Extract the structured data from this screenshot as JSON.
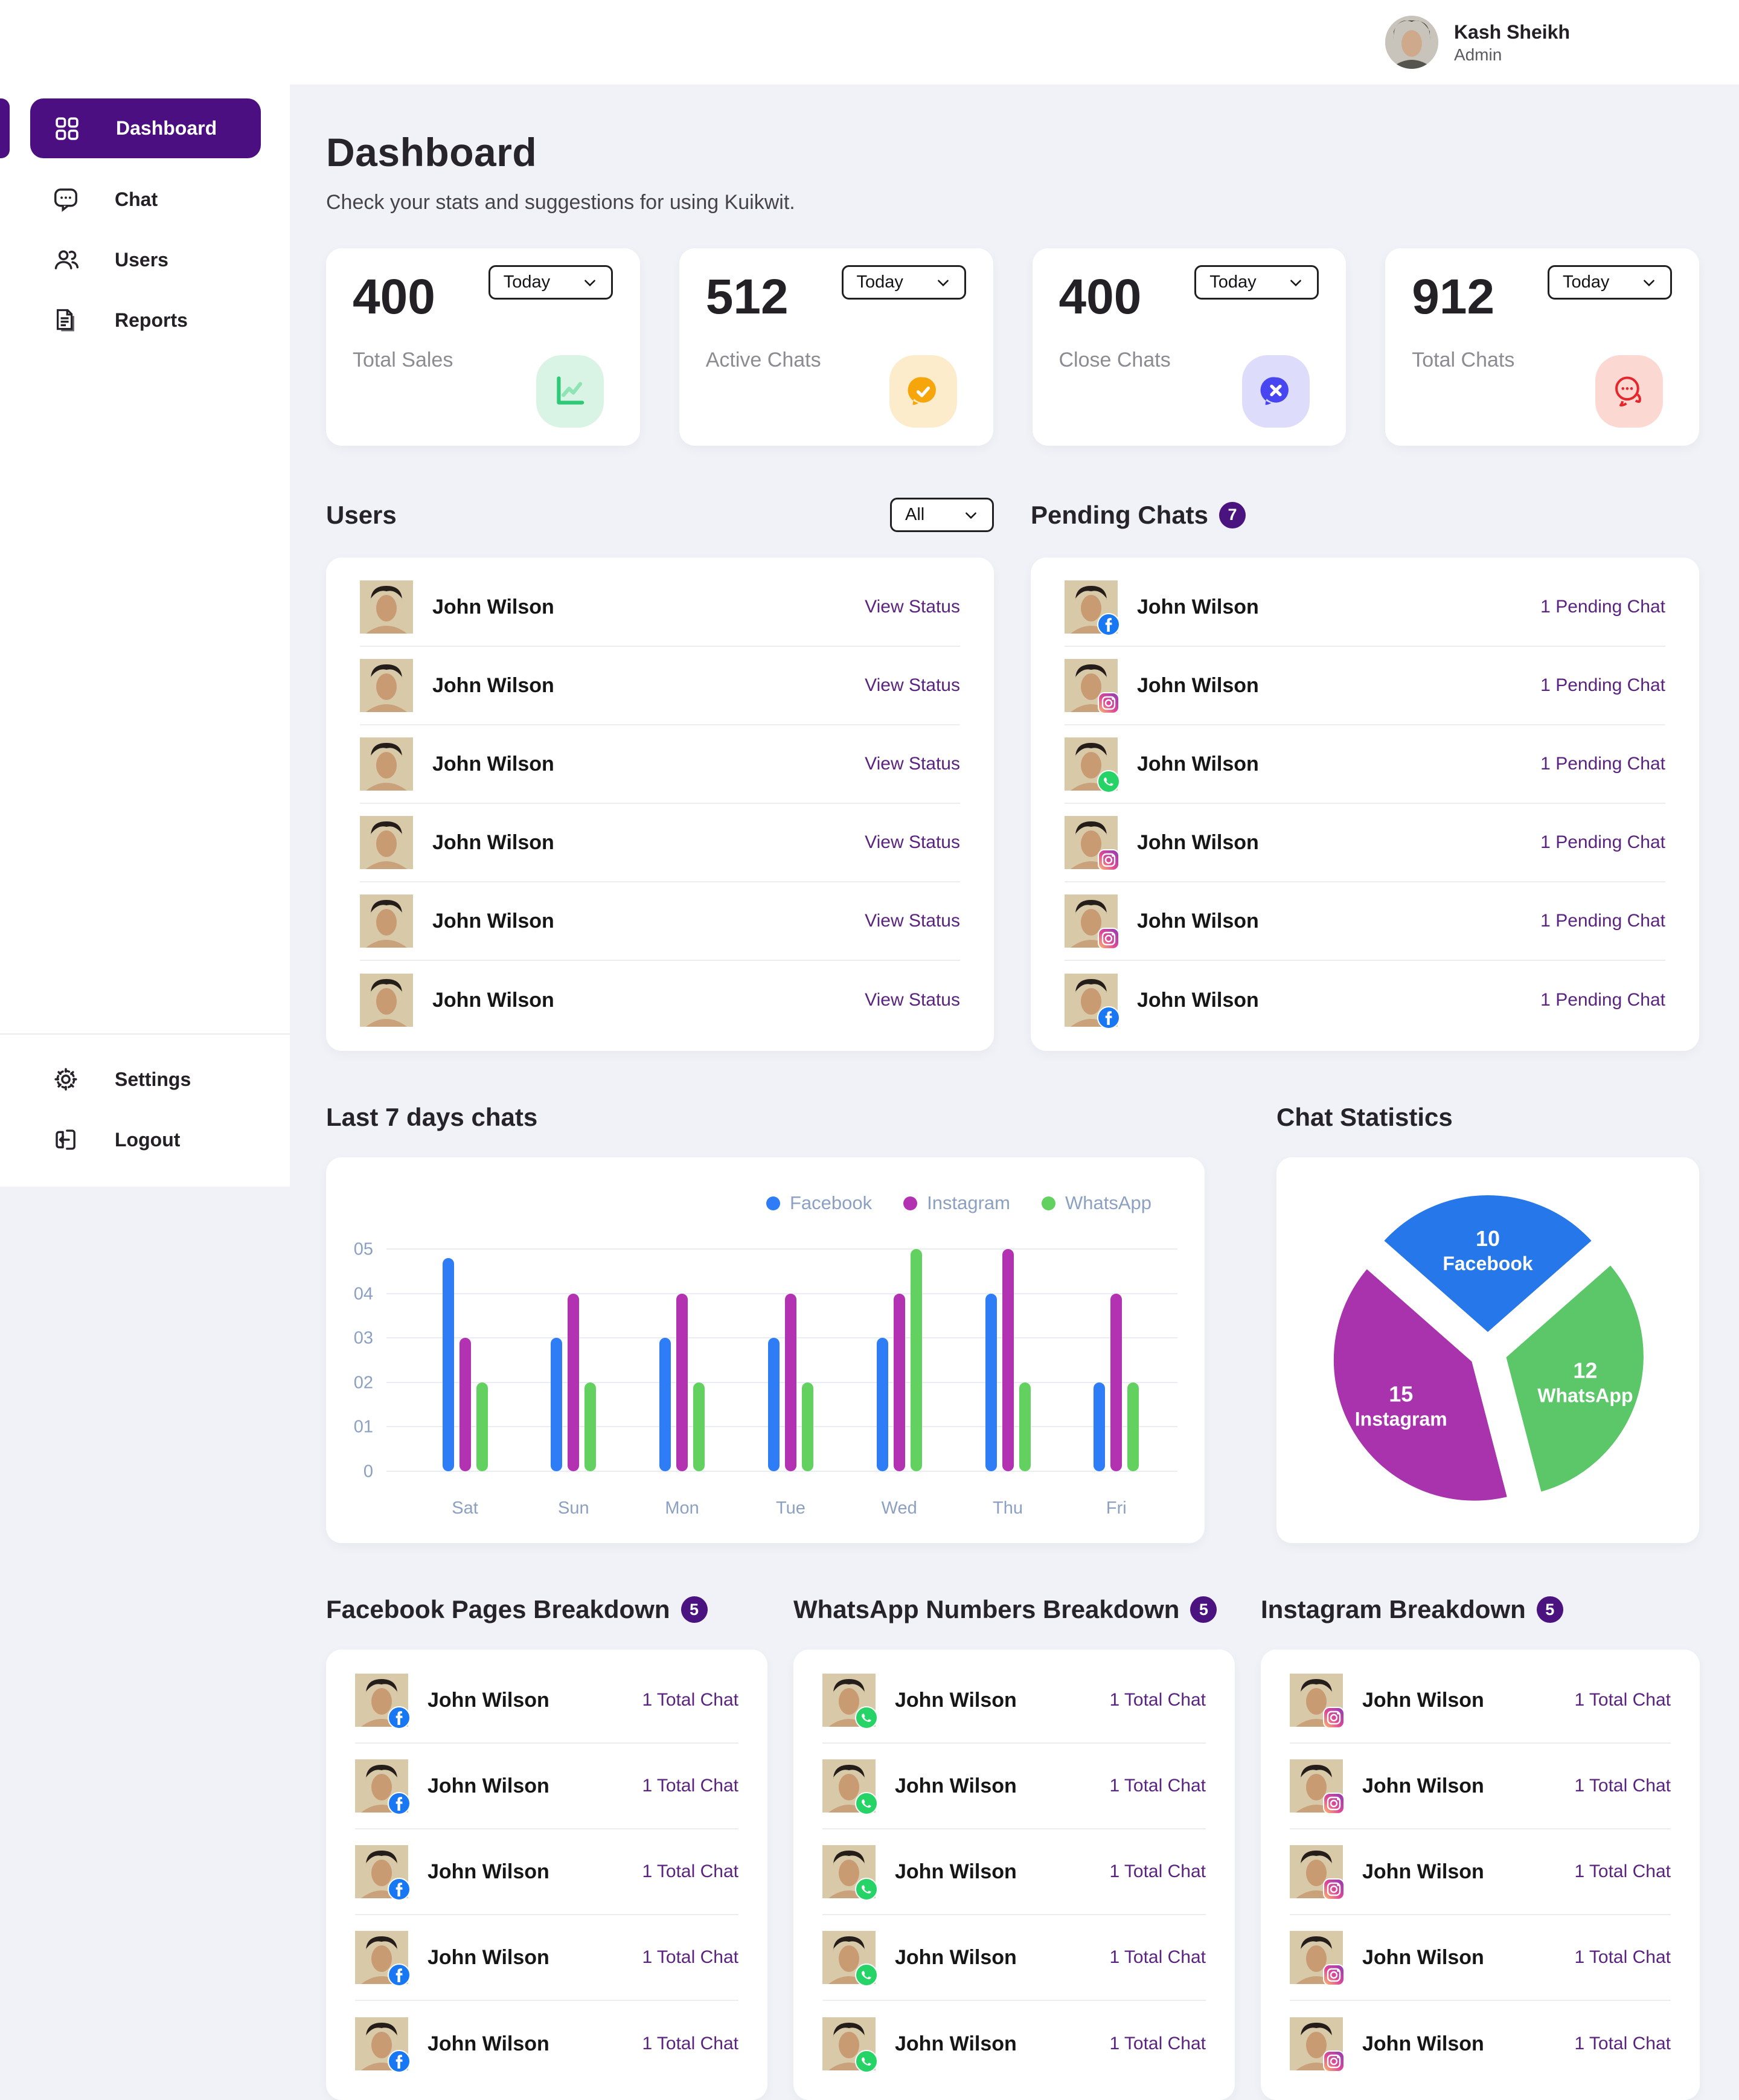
{
  "header": {
    "user_name": "Kash Sheikh",
    "user_role": "Admin"
  },
  "sidebar": {
    "items": [
      {
        "label": "Dashboard",
        "icon": "grid-icon",
        "active": true
      },
      {
        "label": "Chat",
        "icon": "chat-icon"
      },
      {
        "label": "Users",
        "icon": "users-icon"
      },
      {
        "label": "Reports",
        "icon": "reports-icon"
      }
    ],
    "footer_items": [
      {
        "label": "Settings",
        "icon": "gear-icon"
      },
      {
        "label": "Logout",
        "icon": "logout-icon"
      }
    ]
  },
  "page": {
    "title": "Dashboard",
    "subtitle": "Check your stats and suggestions for using Kuikwit."
  },
  "stats": [
    {
      "value": "400",
      "label": "Total Sales",
      "period": "Today",
      "icon": "chart-line-icon",
      "icon_bg": "#d9f4e5"
    },
    {
      "value": "512",
      "label": "Active Chats",
      "period": "Today",
      "icon": "chat-check-icon",
      "icon_bg": "#fceccb"
    },
    {
      "value": "400",
      "label": "Close Chats",
      "period": "Today",
      "icon": "chat-close-icon",
      "icon_bg": "#dedcfb"
    },
    {
      "value": "912",
      "label": "Total Chats",
      "period": "Today",
      "icon": "chat-multi-icon",
      "icon_bg": "#fbd9d2"
    }
  ],
  "users_section": {
    "title": "Users",
    "filter": "All",
    "rows": [
      {
        "name": "John Wilson",
        "action": "View Status"
      },
      {
        "name": "John Wilson",
        "action": "View Status"
      },
      {
        "name": "John Wilson",
        "action": "View Status"
      },
      {
        "name": "John Wilson",
        "action": "View Status"
      },
      {
        "name": "John Wilson",
        "action": "View Status"
      },
      {
        "name": "John Wilson",
        "action": "View Status"
      }
    ]
  },
  "pending_section": {
    "title": "Pending Chats",
    "badge": "7",
    "rows": [
      {
        "name": "John Wilson",
        "status": "1 Pending Chat",
        "platform": "facebook"
      },
      {
        "name": "John Wilson",
        "status": "1 Pending Chat",
        "platform": "instagram"
      },
      {
        "name": "John Wilson",
        "status": "1 Pending Chat",
        "platform": "whatsapp"
      },
      {
        "name": "John Wilson",
        "status": "1 Pending Chat",
        "platform": "instagram"
      },
      {
        "name": "John Wilson",
        "status": "1 Pending Chat",
        "platform": "instagram"
      },
      {
        "name": "John Wilson",
        "status": "1 Pending Chat",
        "platform": "facebook"
      }
    ]
  },
  "chart_data": [
    {
      "type": "bar",
      "title": "Last 7 days chats",
      "categories": [
        "Sat",
        "Sun",
        "Mon",
        "Tue",
        "Wed",
        "Thu",
        "Fri"
      ],
      "series": [
        {
          "name": "Facebook",
          "color": "#2e7cf6",
          "values": [
            4.8,
            3,
            3,
            3,
            3,
            4,
            2
          ]
        },
        {
          "name": "Instagram",
          "color": "#b232b2",
          "values": [
            3,
            4,
            4,
            4,
            4,
            5,
            4
          ]
        },
        {
          "name": "WhatsApp",
          "color": "#63d15f",
          "values": [
            2,
            2,
            2,
            2,
            5,
            2,
            2
          ]
        }
      ],
      "ylim": [
        0,
        5
      ],
      "yticks": [
        "0",
        "01",
        "02",
        "03",
        "04",
        "05"
      ],
      "grid": true,
      "legend_position": "top-right"
    },
    {
      "type": "pie",
      "title": "Chat Statistics",
      "slices": [
        {
          "label": "Facebook",
          "value": 10,
          "color": "#2577ea"
        },
        {
          "label": "Instagram",
          "value": 15,
          "color": "#a833ad"
        },
        {
          "label": "WhatsApp",
          "value": 12,
          "color": "#5bc769"
        }
      ]
    }
  ],
  "charts_section": {
    "bar_title": "Last 7 days chats",
    "pie_title": "Chat Statistics"
  },
  "breakdowns": [
    {
      "title": "Facebook Pages Breakdown",
      "badge": "5",
      "platform": "facebook",
      "rows": [
        {
          "name": "John Wilson",
          "total": "1 Total Chat"
        },
        {
          "name": "John Wilson",
          "total": "1 Total Chat"
        },
        {
          "name": "John Wilson",
          "total": "1 Total Chat"
        },
        {
          "name": "John Wilson",
          "total": "1 Total Chat"
        },
        {
          "name": "John Wilson",
          "total": "1 Total Chat"
        }
      ]
    },
    {
      "title": "WhatsApp Numbers Breakdown",
      "badge": "5",
      "platform": "whatsapp",
      "rows": [
        {
          "name": "John Wilson",
          "total": "1 Total Chat"
        },
        {
          "name": "John Wilson",
          "total": "1 Total Chat"
        },
        {
          "name": "John Wilson",
          "total": "1 Total Chat"
        },
        {
          "name": "John Wilson",
          "total": "1 Total Chat"
        },
        {
          "name": "John Wilson",
          "total": "1 Total Chat"
        }
      ]
    },
    {
      "title": "Instagram Breakdown",
      "badge": "5",
      "platform": "instagram",
      "rows": [
        {
          "name": "John Wilson",
          "total": "1 Total Chat"
        },
        {
          "name": "John Wilson",
          "total": "1 Total Chat"
        },
        {
          "name": "John Wilson",
          "total": "1 Total Chat"
        },
        {
          "name": "John Wilson",
          "total": "1 Total Chat"
        },
        {
          "name": "John Wilson",
          "total": "1 Total Chat"
        }
      ]
    }
  ],
  "colors": {
    "accent_purple": "#4b0f82",
    "link_purple": "#5b2380",
    "page_bg": "#f0f2f7"
  }
}
